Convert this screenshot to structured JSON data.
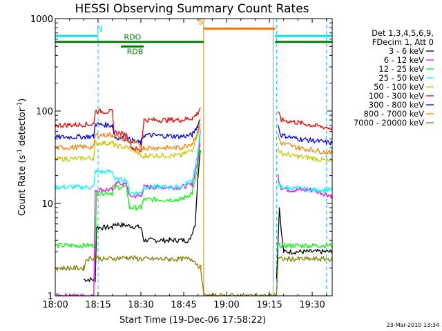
{
  "chart_data": {
    "type": "line",
    "title": "HESSI Observing Summary Count Rates",
    "xlabel": "Start Time (19-Dec-06 17:58:22)",
    "ylabel_main": "Count Rate (s",
    "ylabel_sup1": "-1",
    "ylabel_mid": " detector",
    "ylabel_sup2": "-1",
    "ylabel_end": ")",
    "y_scale": "log",
    "ylim": [
      1,
      1000
    ],
    "xlim_minutes": [
      0,
      97
    ],
    "x_tick_values": [
      0,
      15,
      30,
      45,
      60,
      75,
      90
    ],
    "x_tick_labels": [
      "18:00",
      "18:15",
      "18:30",
      "18:45",
      "19:00",
      "19:15",
      "19:30"
    ],
    "y_tick_values": [
      1,
      10,
      100,
      1000
    ],
    "y_tick_labels": [
      "1",
      "10",
      "100",
      "1000"
    ],
    "timestamp": "23-Mar-2010 13:34",
    "legend_header": [
      "Det 1,3,4,5,6,9,",
      "FDecim 1, Att 0"
    ],
    "legend_position": "right",
    "data_gap_minutes": [
      52,
      77
    ],
    "flags": [
      {
        "label": "N",
        "color": "#00e0ff",
        "y": 650,
        "segments": [
          [
            0,
            15
          ],
          [
            77,
            97
          ]
        ]
      },
      {
        "label": "RDO",
        "color": "#008000",
        "y": 560,
        "segments": [
          [
            0,
            52
          ],
          [
            77,
            97
          ]
        ]
      },
      {
        "label": "RDB",
        "color": "#008000",
        "y": 500,
        "segments": [
          [
            23,
            31
          ]
        ]
      },
      {
        "label": "S",
        "color": "#ff7700",
        "y": 780,
        "segments": [
          [
            52,
            77
          ]
        ]
      }
    ],
    "vlines": [
      {
        "x": 15,
        "color": "#00c8ff",
        "style": "dashed"
      },
      {
        "x": 52,
        "color": "#e08000",
        "style": "solid"
      },
      {
        "x": 76.3,
        "color": "#00c8ff",
        "style": "solid"
      },
      {
        "x": 77.5,
        "color": "#00c8ff",
        "style": "dashed"
      },
      {
        "x": 95,
        "color": "#00c8ff",
        "style": "dashed"
      }
    ],
    "series": [
      {
        "name": "3 - 6 keV",
        "color": "#000000",
        "points": [
          [
            10,
            1.5
          ],
          [
            14,
            1.5
          ],
          [
            14.5,
            5.5
          ],
          [
            20,
            5.5
          ],
          [
            21,
            6
          ],
          [
            30,
            5.5
          ],
          [
            31,
            4
          ],
          [
            40,
            4
          ],
          [
            47,
            4
          ],
          [
            49,
            6
          ],
          [
            50,
            20
          ],
          [
            50.8,
            40
          ],
          [
            77.5,
            1.5
          ],
          [
            78.5,
            9
          ],
          [
            79.5,
            4
          ],
          [
            80,
            3
          ],
          [
            97,
            3
          ]
        ]
      },
      {
        "name": "6 - 12 keV",
        "color": "#ff00ff",
        "points": [
          [
            0,
            1
          ],
          [
            13.5,
            1
          ],
          [
            14,
            14
          ],
          [
            20,
            14
          ],
          [
            21,
            17
          ],
          [
            25,
            16
          ],
          [
            26,
            12
          ],
          [
            30,
            12
          ],
          [
            31,
            15
          ],
          [
            44,
            15
          ],
          [
            48,
            16
          ],
          [
            50,
            30
          ],
          [
            50.8,
            60
          ],
          [
            78,
            20
          ],
          [
            79,
            15
          ],
          [
            82,
            14
          ],
          [
            90,
            14
          ],
          [
            97,
            12
          ]
        ]
      },
      {
        "name": "12 - 25 keV",
        "color": "#00ff00",
        "points": [
          [
            0,
            3.5
          ],
          [
            14,
            3.5
          ],
          [
            14.5,
            13
          ],
          [
            20,
            13
          ],
          [
            21,
            15
          ],
          [
            25,
            15
          ],
          [
            26,
            9
          ],
          [
            30,
            9
          ],
          [
            31,
            11
          ],
          [
            44,
            11
          ],
          [
            48,
            13
          ],
          [
            50,
            25
          ],
          [
            50.8,
            45
          ],
          [
            77.5,
            3.5
          ],
          [
            97,
            3.5
          ]
        ]
      },
      {
        "name": "25 - 50 keV",
        "color": "#00ffff",
        "points": [
          [
            0,
            15
          ],
          [
            13.5,
            15
          ],
          [
            14,
            22
          ],
          [
            20,
            22
          ],
          [
            21,
            18
          ],
          [
            25,
            18
          ],
          [
            26,
            13
          ],
          [
            30,
            13
          ],
          [
            31,
            15
          ],
          [
            44,
            15
          ],
          [
            48,
            18
          ],
          [
            50,
            35
          ],
          [
            50.8,
            70
          ],
          [
            78,
            16
          ],
          [
            79,
            15
          ],
          [
            90,
            14
          ],
          [
            97,
            14
          ]
        ]
      },
      {
        "name": "50 - 100 keV",
        "color": "#c8c800",
        "points": [
          [
            0,
            30
          ],
          [
            13.5,
            31
          ],
          [
            14,
            45
          ],
          [
            20,
            45
          ],
          [
            21,
            42
          ],
          [
            26,
            40
          ],
          [
            28,
            37
          ],
          [
            31,
            31
          ],
          [
            31.5,
            33
          ],
          [
            44,
            33
          ],
          [
            48,
            38
          ],
          [
            50,
            60
          ],
          [
            50.8,
            85
          ],
          [
            78,
            40
          ],
          [
            79,
            35
          ],
          [
            85,
            32
          ],
          [
            90,
            31
          ],
          [
            97,
            28
          ]
        ]
      },
      {
        "name": "100 - 300 keV",
        "color": "#ff0000",
        "points": [
          [
            0,
            70
          ],
          [
            13.5,
            72
          ],
          [
            14,
            100
          ],
          [
            20,
            98
          ],
          [
            20.5,
            60
          ],
          [
            25,
            55
          ],
          [
            27,
            40
          ],
          [
            30,
            37
          ],
          [
            31,
            80
          ],
          [
            44,
            80
          ],
          [
            48,
            84
          ],
          [
            50,
            95
          ],
          [
            50.8,
            110
          ],
          [
            78,
            100
          ],
          [
            79,
            80
          ],
          [
            85,
            75
          ],
          [
            90,
            70
          ],
          [
            97,
            65
          ]
        ]
      },
      {
        "name": "300 - 800 keV",
        "color": "#0000ff",
        "points": [
          [
            0,
            52
          ],
          [
            13.5,
            53
          ],
          [
            14,
            72
          ],
          [
            20,
            70
          ],
          [
            21,
            52
          ],
          [
            25,
            50
          ],
          [
            27,
            48
          ],
          [
            30,
            45
          ],
          [
            31,
            55
          ],
          [
            44,
            53
          ],
          [
            48,
            55
          ],
          [
            50,
            70
          ],
          [
            50.8,
            85
          ],
          [
            78,
            70
          ],
          [
            79,
            55
          ],
          [
            85,
            50
          ],
          [
            90,
            48
          ],
          [
            97,
            45
          ]
        ]
      },
      {
        "name": "800 - 7000 keV",
        "color": "#ff8000",
        "points": [
          [
            0,
            40
          ],
          [
            13.5,
            41
          ],
          [
            14,
            55
          ],
          [
            20,
            55
          ],
          [
            24,
            50
          ],
          [
            28,
            45
          ],
          [
            31,
            40
          ],
          [
            44,
            40
          ],
          [
            48,
            45
          ],
          [
            50,
            60
          ],
          [
            50.8,
            75
          ],
          [
            78,
            55
          ],
          [
            79,
            45
          ],
          [
            85,
            40
          ],
          [
            90,
            38
          ],
          [
            97,
            35
          ]
        ]
      },
      {
        "name": "7000 - 20000 keV",
        "color": "#808000",
        "points": [
          [
            0,
            2
          ],
          [
            10,
            2
          ],
          [
            11,
            2.5
          ],
          [
            14,
            2.6
          ],
          [
            17,
            2.5
          ],
          [
            25,
            2.6
          ],
          [
            31,
            2.5
          ],
          [
            40,
            2.5
          ],
          [
            48,
            2.5
          ],
          [
            51,
            2
          ],
          [
            52,
            1
          ],
          [
            77.5,
            1
          ],
          [
            78,
            2.5
          ],
          [
            97,
            2.5
          ]
        ]
      }
    ]
  }
}
